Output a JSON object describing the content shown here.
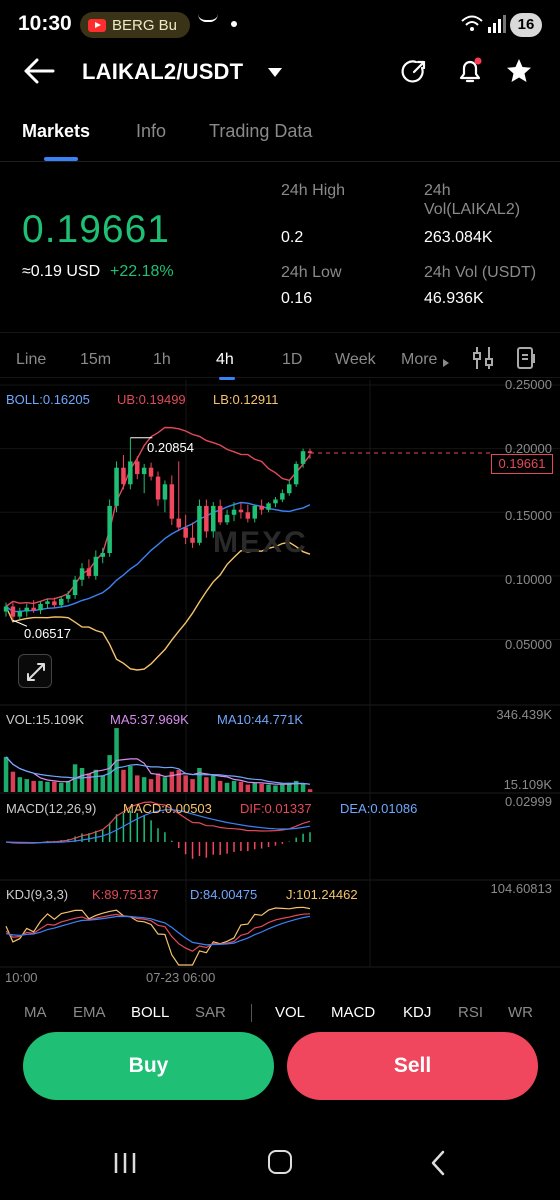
{
  "status_bar": {
    "time": "10:30",
    "notification": "BERG Bu",
    "battery": "16",
    "icons": [
      "youtube-icon",
      "amazon-icon",
      "dot-icon",
      "wifi-icon",
      "signal-icon"
    ]
  },
  "header": {
    "pair": "LAIKAL2/USDT",
    "icons": [
      "back-arrow-icon",
      "dropdown-caret-icon",
      "share-icon",
      "bell-icon",
      "star-icon"
    ],
    "notification_dot_color": "#ff3b55"
  },
  "tabs": {
    "items": [
      "Markets",
      "Info",
      "Trading Data"
    ],
    "active": "Markets"
  },
  "ticker": {
    "last_price": "0.19661",
    "usd_equiv": "≈0.19 USD",
    "change": "+22.18%",
    "high_label": "24h High",
    "high_value": "0.2",
    "vol_base_label_1": "24h",
    "vol_base_label_2": "Vol(LAIKAL2)",
    "vol_base_value": "263.084K",
    "low_label": "24h Low",
    "low_value": "0.16",
    "vol_quote_label": "24h Vol (USDT)",
    "vol_quote_value": "46.936K"
  },
  "intervals": {
    "items": [
      "Line",
      "15m",
      "1h",
      "4h",
      "1D",
      "Week",
      "More"
    ],
    "active": "4h"
  },
  "chart": {
    "boll": "BOLL:0.16205",
    "ub": "UB:0.19499",
    "lb": "LB:0.12911",
    "y_axis": [
      "0.25000",
      "0.20000",
      "0.15000",
      "0.10000",
      "0.05000"
    ],
    "current_price_tag": "0.19661",
    "high_marker": "0.20854",
    "low_marker": "0.06517",
    "watermark": "MEXC",
    "vol": "VOL:15.109K",
    "ma5": "MA5:37.969K",
    "ma10": "MA10:44.771K",
    "vol_max": "346.439K",
    "vol_last": "15.109K",
    "macd_params": "MACD(12,26,9)",
    "macd": "MACD:0.00503",
    "dif": "DIF:0.01337",
    "dea": "DEA:0.01086",
    "macd_max": "0.02999",
    "kdj_params": "KDJ(9,3,3)",
    "k": "K:89.75137",
    "d": "D:84.00475",
    "j": "J:101.24462",
    "kdj_max": "104.60813",
    "time_labels": [
      "10:00",
      "07-23 06:00"
    ],
    "colors": {
      "up": "#1fbf75",
      "down": "#f0475e",
      "boll_mid": "#3b82f6",
      "boll_ub": "#e24a5a",
      "boll_lb": "#f5c36b",
      "ma5": "#d98cf0",
      "ma10": "#6fa8ff"
    }
  },
  "chart_data": {
    "type": "candlestick",
    "interval": "4h",
    "ylim": [
      0.03,
      0.25
    ],
    "y_ticks": [
      0.25,
      0.2,
      0.15,
      0.1,
      0.05
    ],
    "high_marker": 0.20854,
    "low_marker": 0.06517,
    "last": 0.19661,
    "candles": [
      {
        "o": 0.072,
        "h": 0.079,
        "l": 0.068,
        "c": 0.076
      },
      {
        "o": 0.076,
        "h": 0.079,
        "l": 0.065,
        "c": 0.068
      },
      {
        "o": 0.068,
        "h": 0.075,
        "l": 0.066,
        "c": 0.072
      },
      {
        "o": 0.072,
        "h": 0.078,
        "l": 0.068,
        "c": 0.075
      },
      {
        "o": 0.075,
        "h": 0.081,
        "l": 0.071,
        "c": 0.073
      },
      {
        "o": 0.073,
        "h": 0.08,
        "l": 0.07,
        "c": 0.078
      },
      {
        "o": 0.078,
        "h": 0.082,
        "l": 0.074,
        "c": 0.08
      },
      {
        "o": 0.08,
        "h": 0.083,
        "l": 0.075,
        "c": 0.077
      },
      {
        "o": 0.077,
        "h": 0.084,
        "l": 0.075,
        "c": 0.082
      },
      {
        "o": 0.082,
        "h": 0.088,
        "l": 0.079,
        "c": 0.085
      },
      {
        "o": 0.085,
        "h": 0.1,
        "l": 0.082,
        "c": 0.097
      },
      {
        "o": 0.097,
        "h": 0.11,
        "l": 0.092,
        "c": 0.106
      },
      {
        "o": 0.106,
        "h": 0.113,
        "l": 0.098,
        "c": 0.1
      },
      {
        "o": 0.1,
        "h": 0.12,
        "l": 0.097,
        "c": 0.115
      },
      {
        "o": 0.115,
        "h": 0.122,
        "l": 0.11,
        "c": 0.118
      },
      {
        "o": 0.118,
        "h": 0.16,
        "l": 0.115,
        "c": 0.155
      },
      {
        "o": 0.155,
        "h": 0.19,
        "l": 0.15,
        "c": 0.185
      },
      {
        "o": 0.185,
        "h": 0.195,
        "l": 0.168,
        "c": 0.172
      },
      {
        "o": 0.172,
        "h": 0.2085,
        "l": 0.168,
        "c": 0.19
      },
      {
        "o": 0.19,
        "h": 0.194,
        "l": 0.176,
        "c": 0.18
      },
      {
        "o": 0.18,
        "h": 0.188,
        "l": 0.165,
        "c": 0.185
      },
      {
        "o": 0.185,
        "h": 0.189,
        "l": 0.175,
        "c": 0.178
      },
      {
        "o": 0.178,
        "h": 0.182,
        "l": 0.155,
        "c": 0.16
      },
      {
        "o": 0.16,
        "h": 0.175,
        "l": 0.15,
        "c": 0.172
      },
      {
        "o": 0.172,
        "h": 0.179,
        "l": 0.14,
        "c": 0.145
      },
      {
        "o": 0.145,
        "h": 0.19,
        "l": 0.135,
        "c": 0.138
      },
      {
        "o": 0.138,
        "h": 0.148,
        "l": 0.125,
        "c": 0.13
      },
      {
        "o": 0.13,
        "h": 0.142,
        "l": 0.122,
        "c": 0.126
      },
      {
        "o": 0.126,
        "h": 0.16,
        "l": 0.124,
        "c": 0.155
      },
      {
        "o": 0.155,
        "h": 0.16,
        "l": 0.13,
        "c": 0.135
      },
      {
        "o": 0.135,
        "h": 0.158,
        "l": 0.13,
        "c": 0.155
      },
      {
        "o": 0.155,
        "h": 0.16,
        "l": 0.14,
        "c": 0.142
      },
      {
        "o": 0.142,
        "h": 0.152,
        "l": 0.14,
        "c": 0.148
      },
      {
        "o": 0.148,
        "h": 0.158,
        "l": 0.143,
        "c": 0.152
      },
      {
        "o": 0.152,
        "h": 0.158,
        "l": 0.145,
        "c": 0.15
      },
      {
        "o": 0.15,
        "h": 0.156,
        "l": 0.142,
        "c": 0.145
      },
      {
        "o": 0.145,
        "h": 0.156,
        "l": 0.142,
        "c": 0.155
      },
      {
        "o": 0.155,
        "h": 0.16,
        "l": 0.148,
        "c": 0.152
      },
      {
        "o": 0.152,
        "h": 0.158,
        "l": 0.15,
        "c": 0.157
      },
      {
        "o": 0.157,
        "h": 0.162,
        "l": 0.154,
        "c": 0.16
      },
      {
        "o": 0.16,
        "h": 0.168,
        "l": 0.158,
        "c": 0.165
      },
      {
        "o": 0.165,
        "h": 0.175,
        "l": 0.163,
        "c": 0.172
      },
      {
        "o": 0.172,
        "h": 0.19,
        "l": 0.17,
        "c": 0.188
      },
      {
        "o": 0.188,
        "h": 0.2,
        "l": 0.185,
        "c": 0.198
      },
      {
        "o": 0.198,
        "h": 0.2,
        "l": 0.192,
        "c": 0.19661
      }
    ],
    "volume": [
      190,
      110,
      80,
      70,
      60,
      60,
      55,
      55,
      50,
      60,
      150,
      130,
      100,
      120,
      90,
      200,
      346,
      120,
      140,
      90,
      80,
      70,
      100,
      80,
      110,
      120,
      90,
      70,
      130,
      80,
      90,
      60,
      50,
      60,
      55,
      40,
      50,
      45,
      40,
      35,
      40,
      50,
      60,
      45,
      15
    ],
    "volume_max": 346.439
  }
}
